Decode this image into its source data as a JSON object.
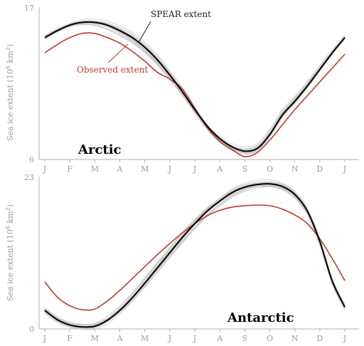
{
  "chart_data": [
    {
      "type": "line",
      "panel_title": "Arctic",
      "ylabel": "Sea ice extent (10",
      "ylabel_sup": "6",
      "ylabel_unit": " km",
      "ylabel_sup2": "2",
      "ylabel_end": ")",
      "ylim": [
        6,
        17
      ],
      "ytick_labels": [
        "6",
        "17"
      ],
      "x_tick_labels": [
        "J",
        "F",
        "M",
        "A",
        "M",
        "J",
        "J",
        "A",
        "S",
        "O",
        "N",
        "D",
        "J"
      ],
      "annotations": {
        "model_label": "SPEAR extent",
        "obs_label": "Observed extent"
      },
      "colors": {
        "observed": "#c0392b",
        "ensemble_mean": "#000000",
        "ensemble_member": "#c8c8c8"
      },
      "series": [
        {
          "name": "SPEAR extent",
          "x": [
            0,
            0.5,
            1,
            1.5,
            2,
            2.5,
            3,
            3.5,
            4,
            4.5,
            5,
            5.5,
            6,
            6.5,
            7,
            7.5,
            8,
            8.5,
            9,
            9.5,
            10,
            10.5,
            11,
            11.5,
            12
          ],
          "values": [
            14.8,
            15.3,
            15.7,
            15.9,
            15.9,
            15.7,
            15.3,
            14.8,
            14.1,
            13.2,
            12.1,
            10.9,
            9.6,
            8.4,
            7.5,
            6.9,
            6.6,
            6.8,
            7.8,
            9.2,
            10.2,
            11.3,
            12.5,
            13.7,
            14.8
          ]
        },
        {
          "name": "Observed extent",
          "x": [
            0,
            0.5,
            1,
            1.5,
            2,
            2.5,
            3,
            3.5,
            4,
            4.5,
            5,
            5.5,
            6,
            6.5,
            7,
            7.5,
            8,
            8.5,
            9,
            9.5,
            10,
            10.5,
            11,
            11.5,
            12
          ],
          "values": [
            13.7,
            14.3,
            14.8,
            15.1,
            15.1,
            14.8,
            14.4,
            13.8,
            13.1,
            12.3,
            11.8,
            11.1,
            9.7,
            8.3,
            7.3,
            6.7,
            6.2,
            6.5,
            7.4,
            8.5,
            9.6,
            10.6,
            11.6,
            12.6,
            13.6
          ]
        }
      ]
    },
    {
      "type": "line",
      "panel_title": "Antarctic",
      "ylabel": "Sea ice extent (10",
      "ylabel_sup": "6",
      "ylabel_unit": " km",
      "ylabel_sup2": "2",
      "ylabel_end": ")",
      "ylim": [
        0,
        23
      ],
      "ytick_labels": [
        "0",
        "23"
      ],
      "x_tick_labels": [
        "J",
        "F",
        "M",
        "A",
        "M",
        "J",
        "J",
        "A",
        "S",
        "O",
        "N",
        "D",
        "J"
      ],
      "colors": {
        "observed": "#c0392b",
        "ensemble_mean": "#000000",
        "ensemble_member": "#c8c8c8"
      },
      "series": [
        {
          "name": "SPEAR extent",
          "x": [
            0,
            0.5,
            1,
            1.5,
            2,
            2.5,
            3,
            3.5,
            4,
            4.5,
            5,
            5.5,
            6,
            6.5,
            7,
            7.5,
            8,
            8.5,
            9,
            9.5,
            10,
            10.5,
            11,
            11.5,
            12
          ],
          "values": [
            2.8,
            1.4,
            0.6,
            0.3,
            0.4,
            1.3,
            2.8,
            4.7,
            6.9,
            9.2,
            11.5,
            13.8,
            15.9,
            17.8,
            19.3,
            20.6,
            21.4,
            21.8,
            21.9,
            21.5,
            20.3,
            17.8,
            13.2,
            7.2,
            3.3
          ]
        },
        {
          "name": "Observed extent",
          "x": [
            0,
            0.5,
            1,
            1.5,
            2,
            2.5,
            3,
            3.5,
            4,
            4.5,
            5,
            5.5,
            6,
            6.5,
            7,
            7.5,
            8,
            8.5,
            9,
            9.5,
            10,
            10.5,
            11,
            11.5,
            12
          ],
          "values": [
            7.1,
            4.8,
            3.5,
            2.9,
            3.0,
            4.2,
            5.8,
            7.6,
            9.4,
            11.2,
            12.9,
            14.5,
            15.9,
            17.1,
            17.9,
            18.4,
            18.6,
            18.7,
            18.6,
            18.1,
            17.2,
            15.9,
            13.6,
            10.6,
            7.3
          ]
        }
      ]
    }
  ]
}
